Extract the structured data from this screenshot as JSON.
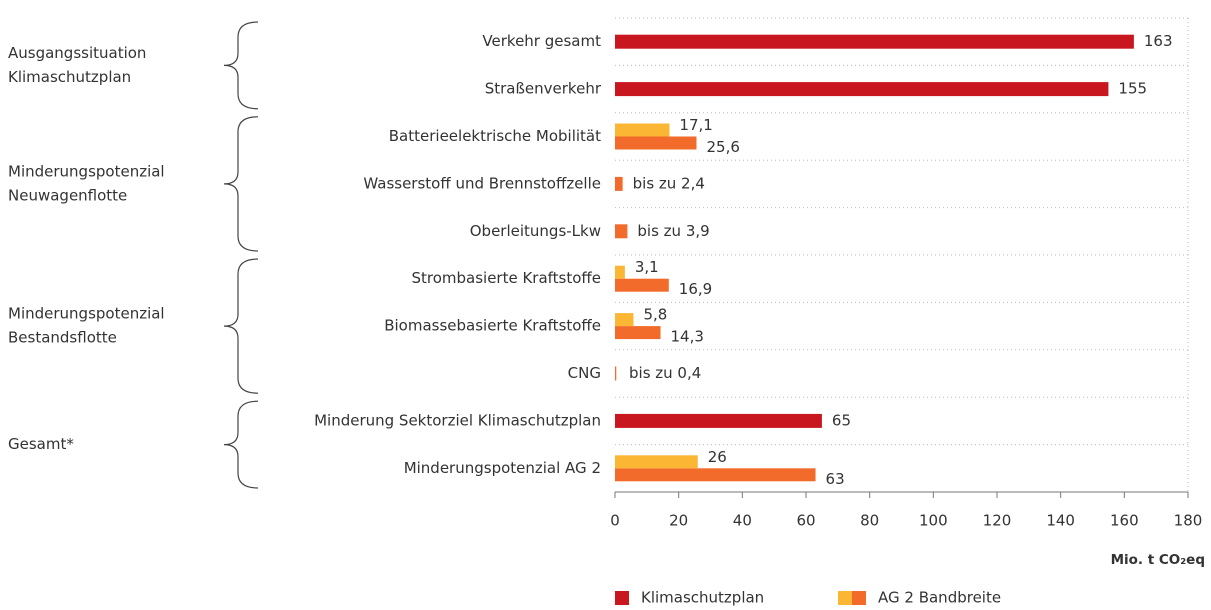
{
  "chart_data": {
    "type": "bar",
    "orientation": "horizontal",
    "groups": [
      {
        "label": [
          "Ausgangssituation",
          "Klimaschutzplan"
        ],
        "categories": [
          "Verkehr gesamt",
          "Straßenverkehr"
        ]
      },
      {
        "label": [
          "Minderungspotenzial",
          "Neuwagenflotte"
        ],
        "categories": [
          "Batterieelektrische Mobilität",
          "Wasserstoff und Brennstoffzelle",
          "Oberleitungs-Lkw"
        ]
      },
      {
        "label": [
          "Minderungspotenzial",
          "Bestandsflotte"
        ],
        "categories": [
          "Strombasierte Kraftstoffe",
          "Biomassebasierte Kraftstoffe",
          "CNG"
        ]
      },
      {
        "label": [
          "Gesamt*"
        ],
        "categories": [
          "Minderung Sektorziel Klimaschutzplan",
          "Minderungspotenzial AG 2"
        ]
      }
    ],
    "series": [
      {
        "name": "Klimaschutzplan",
        "color": "#c8171e",
        "values": [
          163,
          155,
          null,
          null,
          null,
          null,
          null,
          null,
          65,
          null
        ]
      },
      {
        "name": "AG 2 Bandbreite",
        "color": "#f26b2a",
        "values": [
          null,
          null,
          25.6,
          2.4,
          3.9,
          16.9,
          14.3,
          0.4,
          null,
          63
        ],
        "value_labels": [
          null,
          null,
          "25,6",
          "bis zu 2,4",
          "bis zu 3,9",
          "16,9",
          "14,3",
          "bis zu 0,4",
          null,
          "63"
        ]
      },
      {
        "color": "#fbb634",
        "values": [
          null,
          null,
          17.1,
          null,
          null,
          3.1,
          5.8,
          null,
          null,
          26
        ],
        "value_labels": [
          null,
          null,
          "17,1",
          null,
          null,
          "3,1",
          "5,8",
          null,
          null,
          "26"
        ]
      }
    ],
    "xlabel": "Mio. t CO₂eq",
    "xlim": [
      0,
      180
    ],
    "xticks": [
      0,
      20,
      40,
      60,
      80,
      100,
      120,
      140,
      160,
      180
    ],
    "grid": true,
    "legend": "bottom"
  }
}
